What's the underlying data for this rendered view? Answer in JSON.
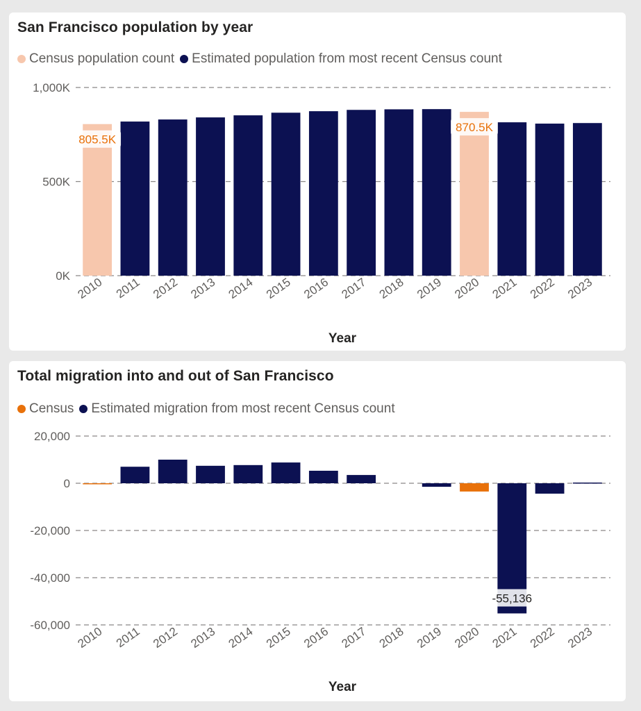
{
  "colors": {
    "census_pop": "#f7c7ad",
    "estimate": "#0c1152",
    "census_mig": "#e8710a",
    "label_orange": "#e8710a",
    "gridline": "#8a8886",
    "tick_text": "#605e5c"
  },
  "chart_data": [
    {
      "type": "bar",
      "title": "San Francisco population by year",
      "xlabel": "Year",
      "ylabel": "",
      "categories": [
        "2010",
        "2011",
        "2012",
        "2013",
        "2014",
        "2015",
        "2016",
        "2017",
        "2018",
        "2019",
        "2020",
        "2021",
        "2022",
        "2023"
      ],
      "series": [
        {
          "name": "Census population count",
          "key": "census",
          "values": [
            805500,
            null,
            null,
            null,
            null,
            null,
            null,
            null,
            null,
            null,
            870500,
            null,
            null,
            null
          ]
        },
        {
          "name": "Estimated population from most recent Census count",
          "key": "estimate",
          "values": [
            null,
            819000,
            830000,
            841000,
            852000,
            866000,
            874000,
            881000,
            884000,
            885000,
            null,
            815000,
            808000,
            811000
          ]
        }
      ],
      "ylim": [
        0,
        1000000
      ],
      "yticks": [
        0,
        500000,
        1000000
      ],
      "ytick_labels": [
        "0K",
        "500K",
        "1,000K"
      ],
      "data_labels": [
        {
          "category": "2010",
          "text": "805.5K"
        },
        {
          "category": "2020",
          "text": "870.5K"
        }
      ],
      "grid": true,
      "legend_position": "top-left"
    },
    {
      "type": "bar",
      "title": "Total migration into and out of San Francisco",
      "xlabel": "Year",
      "ylabel": "",
      "categories": [
        "2010",
        "2011",
        "2012",
        "2013",
        "2014",
        "2015",
        "2016",
        "2017",
        "2018",
        "2019",
        "2020",
        "2021",
        "2022",
        "2023"
      ],
      "series": [
        {
          "name": "Census",
          "key": "census",
          "values": [
            -200,
            null,
            null,
            null,
            null,
            null,
            null,
            null,
            null,
            null,
            -3500,
            null,
            null,
            null
          ]
        },
        {
          "name": "Estimated migration from most recent Census count",
          "key": "estimate",
          "values": [
            null,
            7000,
            10000,
            7400,
            7700,
            8800,
            5300,
            3500,
            0,
            -1500,
            null,
            -55136,
            -4400,
            300
          ]
        }
      ],
      "ylim": [
        -60000,
        20000
      ],
      "yticks": [
        20000,
        0,
        -20000,
        -40000,
        -60000
      ],
      "ytick_labels": [
        "20,000",
        "0",
        "-20,000",
        "-40,000",
        "-60,000"
      ],
      "data_labels": [
        {
          "category": "2021",
          "text": "-55,136"
        }
      ],
      "grid": true,
      "legend_position": "top-left"
    }
  ]
}
